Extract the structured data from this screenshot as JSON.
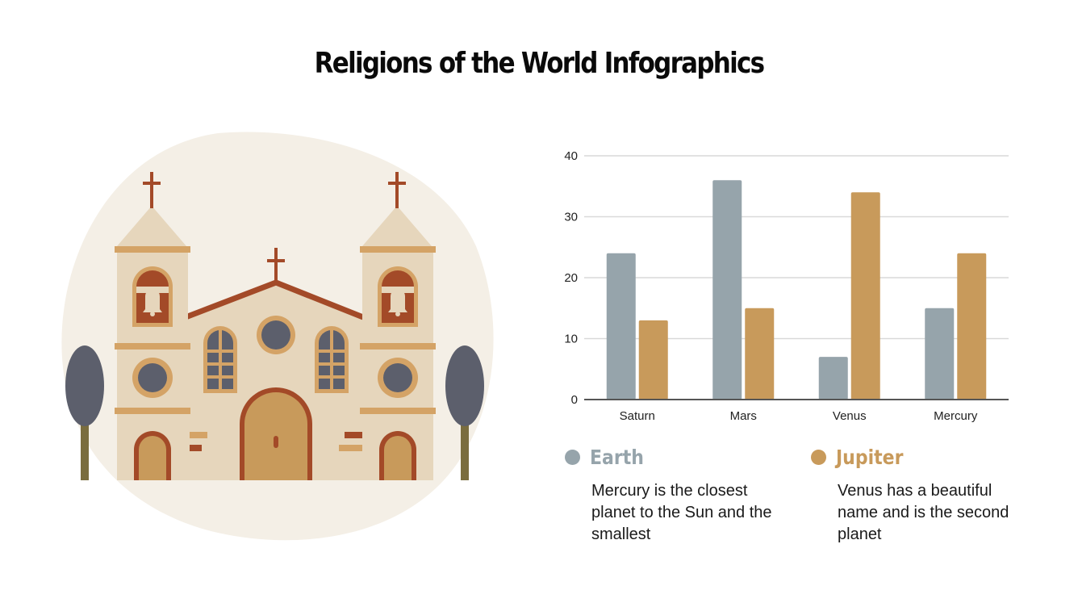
{
  "title": "Religions of the World Infographics",
  "colors": {
    "earth": "#96a4ab",
    "jupiter": "#c89a5b",
    "blob": "#f4efe6",
    "wall": "#e6d6bc",
    "trim": "#d4a366",
    "roof": "#a34a28",
    "window": "#5c5f6c",
    "trunk": "#7a6d3e"
  },
  "legend": [
    {
      "name": "Earth",
      "color": "#96a4ab",
      "description": "Mercury is the closest planet to the Sun and the smallest"
    },
    {
      "name": "Jupiter",
      "color": "#c89a5b",
      "description": "Venus has a beautiful name and is the second planet"
    }
  ],
  "chart_data": {
    "type": "bar",
    "title": "",
    "xlabel": "",
    "ylabel": "",
    "categories": [
      "Saturn",
      "Mars",
      "Venus",
      "Mercury"
    ],
    "series": [
      {
        "name": "Earth",
        "values": [
          24,
          36,
          7,
          15
        ],
        "color": "#96a4ab"
      },
      {
        "name": "Jupiter",
        "values": [
          13,
          15,
          34,
          24
        ],
        "color": "#c89a5b"
      }
    ],
    "yticks": [
      0,
      10,
      20,
      30,
      40
    ],
    "ylim": [
      0,
      40
    ],
    "grid": true,
    "legend_position": "bottom"
  },
  "illustration": {
    "subject": "church",
    "icons": [
      "cross-icon",
      "bell-icon",
      "tree-icon"
    ]
  }
}
